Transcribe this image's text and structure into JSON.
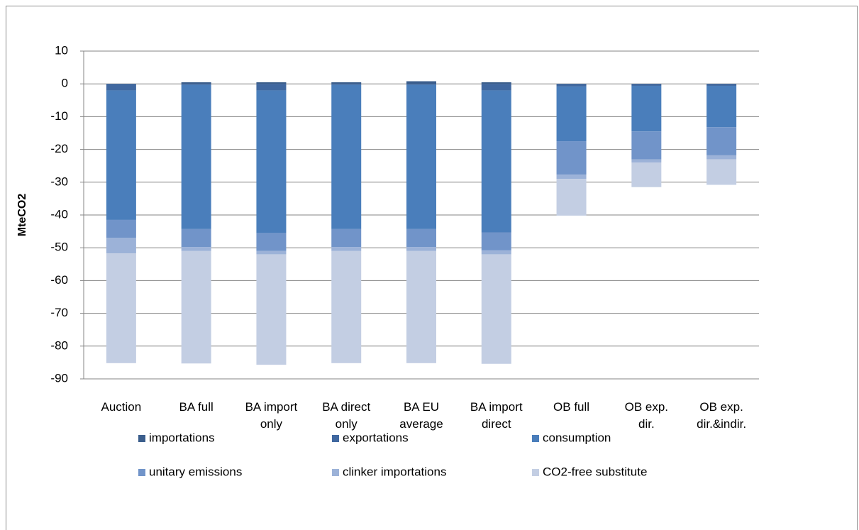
{
  "chart_data": {
    "type": "stacked_bar",
    "y_label": "MteCO2",
    "categories": [
      "Auction",
      "BA full",
      "BA import only",
      "BA direct only",
      "BA EU average",
      "BA import direct",
      "OB full",
      "OB exp. dir.",
      "OB exp. dir.&indir."
    ],
    "series": [
      {
        "name": "importations",
        "color": "#3b5e8c",
        "values": [
          0,
          0.5,
          0.5,
          0.5,
          0.8,
          0.5,
          0,
          0,
          0
        ]
      },
      {
        "name": "exportations",
        "color": "#4068a0",
        "values": [
          -2,
          -0.3,
          -2,
          -0.3,
          -0.3,
          -2,
          -0.8,
          -0.6,
          -0.6
        ]
      },
      {
        "name": "consumption",
        "color": "#4a7ebb",
        "values": [
          -39.5,
          -44,
          -43.5,
          -44,
          -44,
          -43.3,
          -16.7,
          -13.9,
          -12.6
        ]
      },
      {
        "name": "unitary emissions",
        "color": "#7194c9",
        "values": [
          -5.5,
          -5.5,
          -5.5,
          -5.5,
          -5.5,
          -5.5,
          -10.2,
          -8.5,
          -8.6
        ]
      },
      {
        "name": "clinker importations",
        "color": "#9cb2d8",
        "values": [
          -4.7,
          -1.2,
          -1,
          -1.2,
          -1.2,
          -1.2,
          -1.3,
          -1,
          -1.2
        ]
      },
      {
        "name": "CO2-free substitute",
        "color": "#c3cee3",
        "values": [
          -33.5,
          -34.3,
          -33.7,
          -34.2,
          -34.2,
          -33.4,
          -11.2,
          -7.5,
          -7.8
        ]
      }
    ],
    "ylim": [
      -90,
      10
    ],
    "yticks": [
      10,
      0,
      -10,
      -20,
      -30,
      -40,
      -50,
      -60,
      -70,
      -80,
      -90
    ],
    "grid": true
  }
}
